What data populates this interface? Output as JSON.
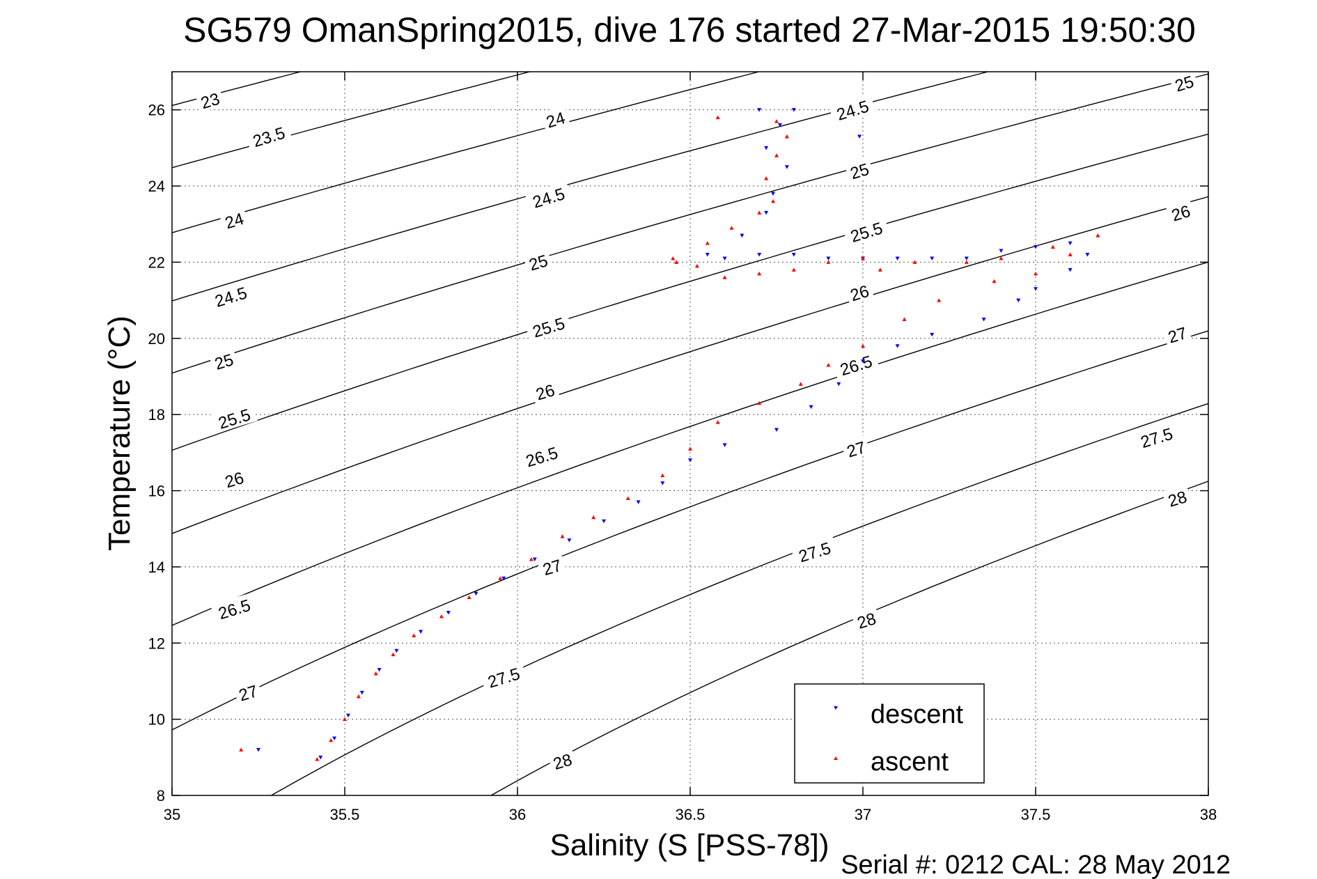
{
  "figure": {
    "title": "SG579 OmanSpring2015, dive 176 started 27-Mar-2015 19:50:30",
    "footer": "Serial #: 0212  CAL: 28 May 2012"
  },
  "chart_data": {
    "type": "scatter",
    "title": "SG579 OmanSpring2015, dive 176 started 27-Mar-2015 19:50:30",
    "xlabel": "Salinity (S [PSS-78])",
    "ylabel": "Temperature (°C)",
    "xlim": [
      35,
      38
    ],
    "ylim": [
      8,
      27
    ],
    "xticks": [
      35,
      35.5,
      36,
      36.5,
      37,
      37.5,
      38
    ],
    "xtick_labels": [
      "35",
      "35.5",
      "36",
      "36.5",
      "37",
      "37.5",
      "38"
    ],
    "yticks": [
      8,
      10,
      12,
      14,
      16,
      18,
      20,
      22,
      24,
      26
    ],
    "ytick_labels": [
      "8",
      "10",
      "12",
      "14",
      "16",
      "18",
      "20",
      "22",
      "24",
      "26"
    ],
    "grid": true,
    "grid_style": "dotted",
    "legend_position": "bottom-right",
    "colors": {
      "descent": "#0000ff",
      "ascent": "#ff0000",
      "contour": "#000000"
    },
    "density_contours": {
      "levels": [
        23,
        23.5,
        24,
        24.5,
        25,
        25.5,
        26,
        26.5,
        27,
        27.5,
        28
      ],
      "labels": [
        {
          "text": "23",
          "s": 35.11,
          "t": 26.25
        },
        {
          "text": "23.5",
          "s": 35.28,
          "t": 25.3
        },
        {
          "text": "24",
          "s": 36.11,
          "t": 25.75
        },
        {
          "text": "24.5",
          "s": 36.97,
          "t": 26.0
        },
        {
          "text": "25",
          "s": 37.93,
          "t": 26.7
        },
        {
          "text": "24",
          "s": 35.18,
          "t": 23.1
        },
        {
          "text": "24.5",
          "s": 36.09,
          "t": 23.7
        },
        {
          "text": "25",
          "s": 36.99,
          "t": 24.4
        },
        {
          "text": "24.5",
          "s": 35.17,
          "t": 21.1
        },
        {
          "text": "25",
          "s": 36.06,
          "t": 22.0
        },
        {
          "text": "25.5",
          "s": 37.01,
          "t": 22.8
        },
        {
          "text": "26",
          "s": 37.92,
          "t": 23.3
        },
        {
          "text": "25",
          "s": 35.15,
          "t": 19.4
        },
        {
          "text": "25.5",
          "s": 36.09,
          "t": 20.3
        },
        {
          "text": "26",
          "s": 36.99,
          "t": 21.2
        },
        {
          "text": "25.5",
          "s": 35.18,
          "t": 17.9
        },
        {
          "text": "26",
          "s": 36.08,
          "t": 18.6
        },
        {
          "text": "26.5",
          "s": 36.98,
          "t": 19.3
        },
        {
          "text": "27",
          "s": 37.91,
          "t": 20.1
        },
        {
          "text": "26",
          "s": 35.18,
          "t": 16.3
        },
        {
          "text": "26.5",
          "s": 36.07,
          "t": 16.9
        },
        {
          "text": "27",
          "s": 36.98,
          "t": 17.1
        },
        {
          "text": "27.5",
          "s": 37.85,
          "t": 17.4
        },
        {
          "text": "26.5",
          "s": 35.18,
          "t": 12.9
        },
        {
          "text": "27",
          "s": 36.1,
          "t": 14.0
        },
        {
          "text": "27.5",
          "s": 36.86,
          "t": 14.4
        },
        {
          "text": "28",
          "s": 37.91,
          "t": 15.8
        },
        {
          "text": "27",
          "s": 35.22,
          "t": 10.7
        },
        {
          "text": "27.5",
          "s": 35.96,
          "t": 11.1
        },
        {
          "text": "28",
          "s": 37.01,
          "t": 12.6
        },
        {
          "text": "28",
          "s": 36.13,
          "t": 8.9
        }
      ]
    },
    "series": [
      {
        "name": "descent",
        "marker": "triangle-down",
        "points": [
          [
            35.43,
            9.0
          ],
          [
            35.47,
            9.5
          ],
          [
            35.51,
            10.1
          ],
          [
            35.55,
            10.7
          ],
          [
            35.6,
            11.3
          ],
          [
            35.65,
            11.8
          ],
          [
            35.72,
            12.3
          ],
          [
            35.8,
            12.8
          ],
          [
            35.88,
            13.3
          ],
          [
            35.96,
            13.7
          ],
          [
            36.05,
            14.2
          ],
          [
            36.15,
            14.7
          ],
          [
            36.25,
            15.2
          ],
          [
            36.35,
            15.7
          ],
          [
            36.42,
            16.2
          ],
          [
            36.5,
            16.8
          ],
          [
            36.6,
            17.2
          ],
          [
            36.75,
            17.6
          ],
          [
            36.85,
            18.2
          ],
          [
            36.93,
            18.8
          ],
          [
            37.0,
            19.4
          ],
          [
            37.1,
            19.8
          ],
          [
            37.2,
            20.1
          ],
          [
            37.35,
            20.5
          ],
          [
            37.45,
            21.0
          ],
          [
            37.5,
            21.3
          ],
          [
            37.6,
            21.8
          ],
          [
            37.65,
            22.2
          ],
          [
            37.6,
            22.5
          ],
          [
            37.5,
            22.4
          ],
          [
            37.4,
            22.3
          ],
          [
            37.3,
            22.1
          ],
          [
            37.2,
            22.1
          ],
          [
            37.1,
            22.1
          ],
          [
            37.0,
            22.1
          ],
          [
            36.9,
            22.1
          ],
          [
            36.8,
            22.2
          ],
          [
            36.7,
            22.2
          ],
          [
            36.6,
            22.1
          ],
          [
            36.55,
            22.2
          ],
          [
            36.65,
            22.7
          ],
          [
            36.72,
            23.3
          ],
          [
            36.74,
            23.8
          ],
          [
            36.78,
            24.5
          ],
          [
            36.72,
            25.0
          ],
          [
            36.76,
            25.6
          ],
          [
            36.8,
            26.0
          ],
          [
            36.7,
            26.0
          ],
          [
            36.99,
            25.3
          ],
          [
            35.25,
            9.2
          ]
        ]
      },
      {
        "name": "ascent",
        "marker": "triangle-up",
        "points": [
          [
            35.42,
            8.95
          ],
          [
            35.46,
            9.45
          ],
          [
            35.5,
            10.0
          ],
          [
            35.54,
            10.6
          ],
          [
            35.59,
            11.2
          ],
          [
            35.64,
            11.7
          ],
          [
            35.7,
            12.2
          ],
          [
            35.78,
            12.7
          ],
          [
            35.86,
            13.2
          ],
          [
            35.95,
            13.7
          ],
          [
            36.04,
            14.2
          ],
          [
            36.13,
            14.8
          ],
          [
            36.22,
            15.3
          ],
          [
            36.32,
            15.8
          ],
          [
            36.42,
            16.4
          ],
          [
            36.5,
            17.1
          ],
          [
            36.58,
            17.8
          ],
          [
            36.7,
            18.3
          ],
          [
            36.82,
            18.8
          ],
          [
            36.9,
            19.3
          ],
          [
            37.0,
            19.8
          ],
          [
            37.12,
            20.5
          ],
          [
            37.22,
            21.0
          ],
          [
            37.38,
            21.5
          ],
          [
            37.5,
            21.7
          ],
          [
            37.6,
            22.2
          ],
          [
            37.68,
            22.7
          ],
          [
            37.55,
            22.4
          ],
          [
            37.4,
            22.1
          ],
          [
            37.3,
            22.0
          ],
          [
            37.15,
            22.0
          ],
          [
            37.05,
            21.8
          ],
          [
            37.0,
            22.1
          ],
          [
            36.9,
            22.0
          ],
          [
            36.8,
            21.8
          ],
          [
            36.7,
            21.7
          ],
          [
            36.6,
            21.6
          ],
          [
            36.52,
            21.9
          ],
          [
            36.45,
            22.1
          ],
          [
            36.55,
            22.5
          ],
          [
            36.62,
            22.9
          ],
          [
            36.7,
            23.3
          ],
          [
            36.74,
            23.6
          ],
          [
            36.72,
            24.2
          ],
          [
            36.75,
            24.8
          ],
          [
            36.78,
            25.3
          ],
          [
            36.75,
            25.7
          ],
          [
            36.58,
            25.8
          ],
          [
            35.2,
            9.2
          ],
          [
            36.46,
            22.0
          ]
        ]
      }
    ]
  }
}
